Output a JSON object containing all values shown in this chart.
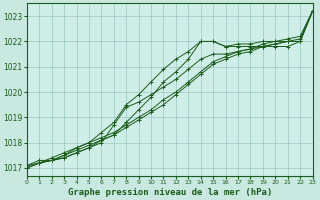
{
  "xlabel": "Graphe pression niveau de la mer (hPa)",
  "background_color": "#c8e8e0",
  "plot_bg_color": "#d0eee8",
  "grid_color": "#98c8c0",
  "line_color": "#1a5c1a",
  "xlim": [
    0,
    23
  ],
  "ylim": [
    1016.7,
    1023.5
  ],
  "yticks": [
    1017,
    1018,
    1019,
    1020,
    1021,
    1022,
    1023
  ],
  "xticks": [
    0,
    1,
    2,
    3,
    4,
    5,
    6,
    7,
    8,
    9,
    10,
    11,
    12,
    13,
    14,
    15,
    16,
    17,
    18,
    19,
    20,
    21,
    22,
    23
  ],
  "series": [
    {
      "x": [
        0,
        1,
        2,
        3,
        4,
        5,
        6,
        7,
        8,
        9,
        10,
        11,
        12,
        13,
        14,
        15,
        16,
        17,
        18,
        19,
        20,
        21,
        22,
        23
      ],
      "y": [
        1017.1,
        1017.3,
        1017.3,
        1017.4,
        1017.6,
        1017.8,
        1018.1,
        1018.3,
        1018.8,
        1019.3,
        1019.8,
        1020.4,
        1020.8,
        1021.3,
        1022.0,
        1022.0,
        1021.8,
        1021.8,
        1021.8,
        1021.8,
        1021.8,
        1021.8,
        1022.0,
        1023.2
      ]
    },
    {
      "x": [
        0,
        1,
        2,
        3,
        4,
        5,
        6,
        7,
        8,
        9,
        10,
        11,
        12,
        13,
        14,
        15,
        16,
        17,
        18,
        19,
        20,
        21,
        22,
        23
      ],
      "y": [
        1017.0,
        1017.2,
        1017.4,
        1017.6,
        1017.8,
        1018.0,
        1018.2,
        1018.4,
        1018.7,
        1019.0,
        1019.3,
        1019.7,
        1020.0,
        1020.4,
        1020.8,
        1021.2,
        1021.4,
        1021.6,
        1021.7,
        1021.9,
        1022.0,
        1022.1,
        1022.2,
        1023.2
      ]
    },
    {
      "x": [
        0,
        1,
        2,
        3,
        4,
        5,
        6,
        7,
        8,
        9,
        10,
        11,
        12,
        13,
        14,
        15,
        16,
        17,
        18,
        19,
        20,
        21,
        22,
        23
      ],
      "y": [
        1017.0,
        1017.2,
        1017.3,
        1017.5,
        1017.7,
        1017.9,
        1018.1,
        1018.3,
        1018.6,
        1018.9,
        1019.2,
        1019.5,
        1019.9,
        1020.3,
        1020.7,
        1021.1,
        1021.3,
        1021.5,
        1021.6,
        1021.8,
        1021.9,
        1022.0,
        1022.0,
        1023.2
      ]
    },
    {
      "x": [
        0,
        1,
        2,
        3,
        4,
        5,
        6,
        7,
        8,
        9,
        10,
        11,
        12,
        13,
        14,
        15,
        16,
        17,
        18,
        19,
        20,
        21,
        22,
        23
      ],
      "y": [
        1017.0,
        1017.2,
        1017.3,
        1017.4,
        1017.6,
        1017.8,
        1018.0,
        1018.7,
        1019.4,
        1019.6,
        1019.9,
        1020.2,
        1020.5,
        1020.9,
        1021.3,
        1021.5,
        1021.5,
        1021.6,
        1021.7,
        1021.8,
        1021.9,
        1022.0,
        1022.0,
        1023.2
      ]
    },
    {
      "x": [
        0,
        2,
        3,
        4,
        5,
        6,
        7,
        8,
        9,
        10,
        11,
        12,
        13,
        14,
        15,
        16,
        17,
        18,
        19,
        20,
        21,
        22,
        23
      ],
      "y": [
        1017.1,
        1017.3,
        1017.5,
        1017.8,
        1018.0,
        1018.4,
        1018.8,
        1019.5,
        1019.9,
        1020.4,
        1020.9,
        1021.3,
        1021.6,
        1022.0,
        1022.0,
        1021.8,
        1021.9,
        1021.9,
        1022.0,
        1022.0,
        1022.0,
        1022.1,
        1023.2
      ]
    }
  ]
}
